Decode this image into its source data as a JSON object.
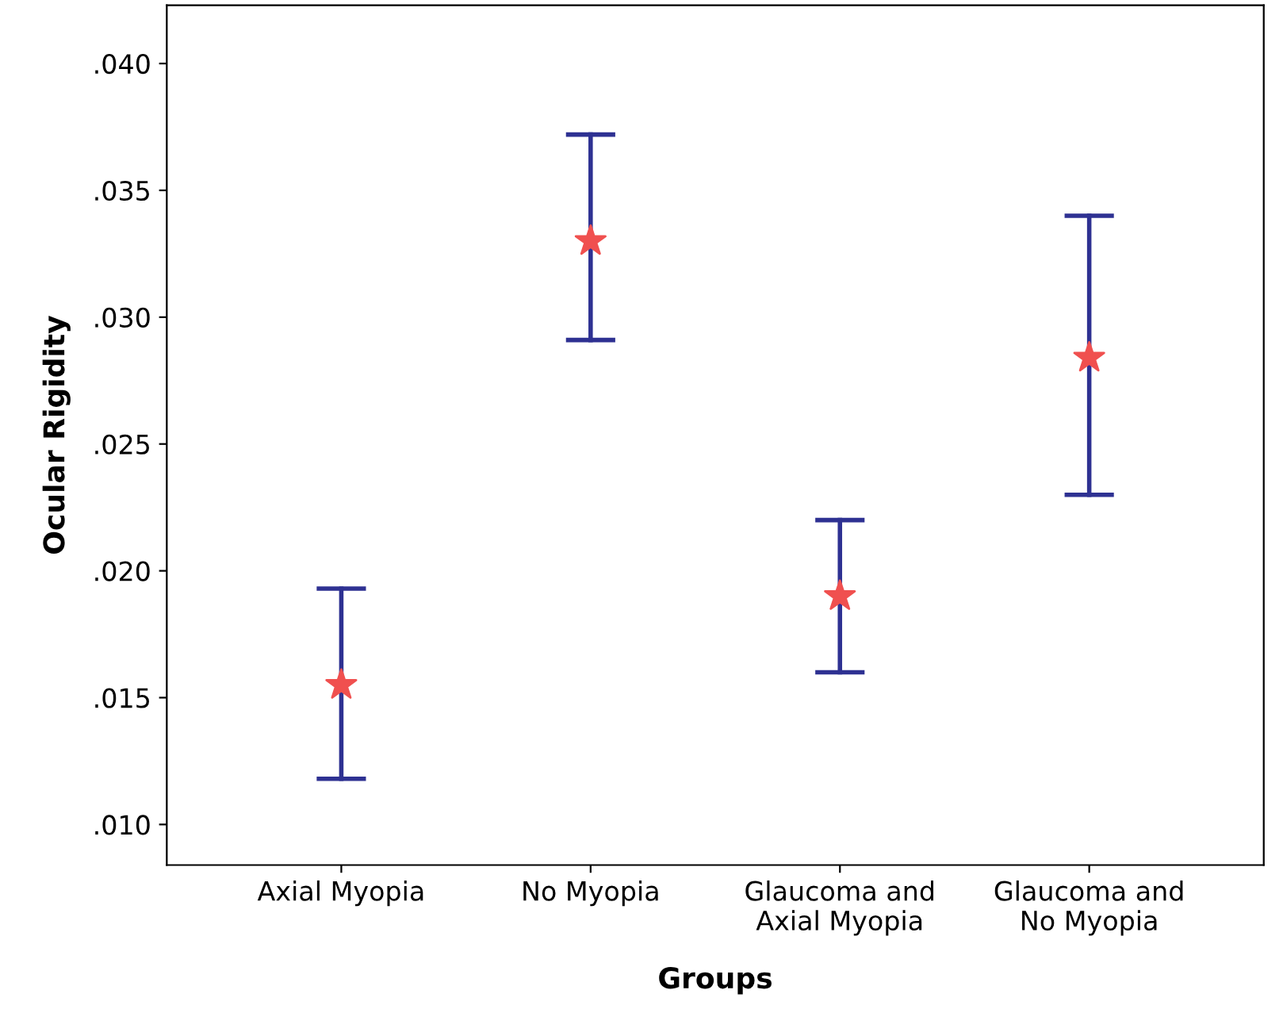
{
  "chart_data": {
    "type": "scatter",
    "xlabel": "Groups",
    "ylabel": "Ocular Rigidity",
    "categories": [
      "Axial Myopia",
      "No Myopia",
      "Glaucoma and\nAxial Myopia",
      "Glaucoma and\nNo Myopia"
    ],
    "series": [
      {
        "color": "#f0504f",
        "values": [
          0.0155,
          0.033,
          0.019,
          0.0284
        ],
        "marker": "star",
        "errors": [
          [
            0.0118,
            0.0193
          ],
          [
            0.0291,
            0.0372
          ],
          [
            0.016,
            0.022
          ],
          [
            0.023,
            0.034
          ]
        ]
      }
    ],
    "ylim": [
      0.0084,
      0.0423
    ],
    "yticks": [
      {
        "value": 0.01,
        "label": ".010"
      },
      {
        "value": 0.015,
        "label": ".015"
      },
      {
        "value": 0.02,
        "label": ".020"
      },
      {
        "value": 0.025,
        "label": ".025"
      },
      {
        "value": 0.03,
        "label": ".030"
      },
      {
        "value": 0.035,
        "label": ".035"
      },
      {
        "value": 0.04,
        "label": ".040"
      }
    ],
    "grid": false,
    "legend": false
  }
}
